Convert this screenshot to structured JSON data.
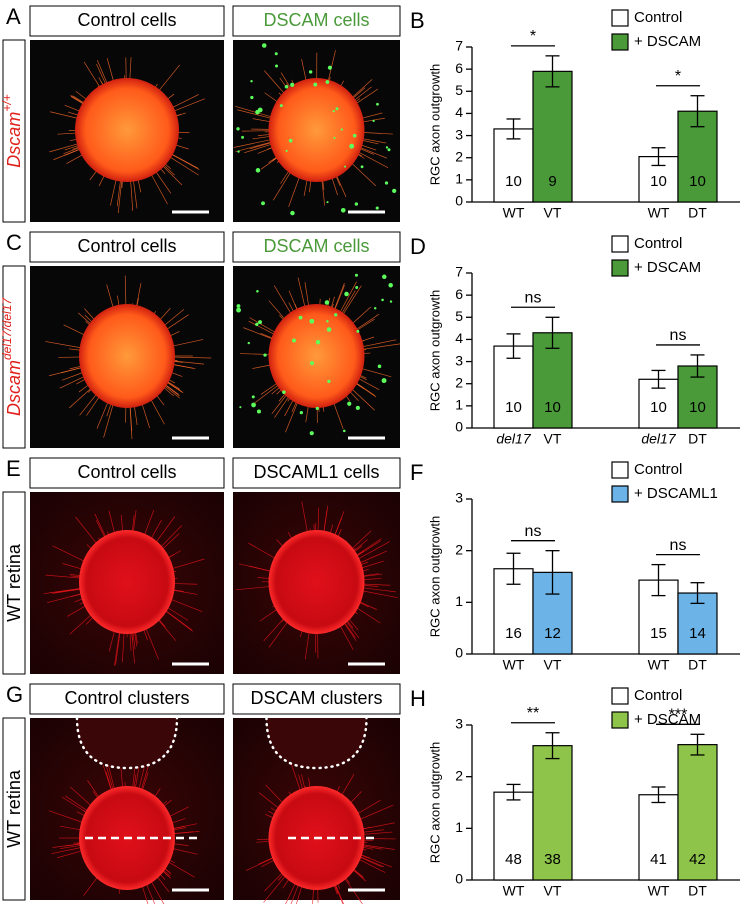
{
  "image_panels": [
    {
      "letter": "A",
      "headers": [
        "Control cells",
        "DSCAM cells"
      ],
      "header_colors": [
        "#000000",
        "#4a9a3a"
      ],
      "side_label": {
        "text": "Dscam",
        "sup": "+/+"
      },
      "side_color": "#e0201b",
      "side_italic": true
    },
    {
      "letter": "C",
      "headers": [
        "Control cells",
        "DSCAM cells"
      ],
      "header_colors": [
        "#000000",
        "#4a9a3a"
      ],
      "side_label": {
        "text": "Dscam",
        "sup": "del17/del17"
      },
      "side_color": "#e0201b",
      "side_italic": true
    },
    {
      "letter": "E",
      "headers": [
        "Control cells",
        "DSCAML1 cells"
      ],
      "header_colors": [
        "#000000",
        "#000000"
      ],
      "side_label": {
        "text": "WT retina"
      },
      "side_color": "#000000",
      "side_italic": false
    },
    {
      "letter": "G",
      "headers": [
        "Control clusters",
        "DSCAM clusters"
      ],
      "header_colors": [
        "#000000",
        "#000000"
      ],
      "side_label": {
        "text": "WT retina"
      },
      "side_color": "#000000",
      "side_italic": false
    }
  ],
  "chart_data": [
    {
      "type": "bar",
      "panel": "B",
      "y_label": "RGC axon outgrowth",
      "ylim": [
        0,
        7
      ],
      "yticks": [
        0,
        1,
        2,
        3,
        4,
        5,
        6,
        7
      ],
      "legend": "top-right",
      "italic_first_label": false,
      "x_labels": [
        [
          "WT",
          "VT"
        ],
        [
          "WT",
          "DT"
        ]
      ],
      "significance": [
        "*",
        "*"
      ],
      "series": [
        {
          "name": "Control",
          "color": "#ffffff",
          "values": [
            3.3,
            2.05
          ],
          "errors": [
            0.45,
            0.4
          ],
          "n": [
            10,
            10
          ]
        },
        {
          "name": "+ DSCAM",
          "color": "#4a9a3a",
          "values": [
            5.9,
            4.1
          ],
          "errors": [
            0.7,
            0.7
          ],
          "n": [
            9,
            10
          ]
        }
      ]
    },
    {
      "type": "bar",
      "panel": "D",
      "y_label": "RGC axon outgrowth",
      "ylim": [
        0,
        7
      ],
      "yticks": [
        0,
        1,
        2,
        3,
        4,
        5,
        6,
        7
      ],
      "legend": "top-right",
      "italic_first_label": true,
      "x_labels": [
        [
          "del17",
          "VT"
        ],
        [
          "del17",
          "DT"
        ]
      ],
      "significance": [
        "ns",
        "ns"
      ],
      "series": [
        {
          "name": "Control",
          "color": "#ffffff",
          "values": [
            3.7,
            2.2
          ],
          "errors": [
            0.55,
            0.4
          ],
          "n": [
            10,
            10
          ]
        },
        {
          "name": "+ DSCAM",
          "color": "#4a9a3a",
          "values": [
            4.3,
            2.8
          ],
          "errors": [
            0.7,
            0.5
          ],
          "n": [
            10,
            10
          ]
        }
      ]
    },
    {
      "type": "bar",
      "panel": "F",
      "y_label": "RGC axon outgrowth",
      "ylim": [
        0,
        3
      ],
      "yticks": [
        0,
        1,
        2,
        3
      ],
      "legend": "top-right",
      "italic_first_label": false,
      "x_labels": [
        [
          "WT",
          "VT"
        ],
        [
          "WT",
          "DT"
        ]
      ],
      "significance": [
        "ns",
        "ns"
      ],
      "series": [
        {
          "name": "Control",
          "color": "#ffffff",
          "values": [
            1.65,
            1.43
          ],
          "errors": [
            0.3,
            0.3
          ],
          "n": [
            16,
            15
          ]
        },
        {
          "name": "+ DSCAML1",
          "color": "#6cb4e8",
          "values": [
            1.58,
            1.18
          ],
          "errors": [
            0.42,
            0.2
          ],
          "n": [
            12,
            14
          ]
        }
      ]
    },
    {
      "type": "bar",
      "panel": "H",
      "y_label": "RGC axon outgrowth",
      "ylim": [
        0,
        3
      ],
      "yticks": [
        0,
        1,
        2,
        3
      ],
      "legend": "top-right",
      "italic_first_label": false,
      "x_labels": [
        [
          "WT",
          "VT"
        ],
        [
          "WT",
          "DT"
        ]
      ],
      "significance": [
        "**",
        "***"
      ],
      "series": [
        {
          "name": "Control",
          "color": "#ffffff",
          "values": [
            1.7,
            1.65
          ],
          "errors": [
            0.15,
            0.15
          ],
          "n": [
            48,
            41
          ]
        },
        {
          "name": "+ DSCAM",
          "color": "#8ec44a",
          "values": [
            2.6,
            2.62
          ],
          "errors": [
            0.25,
            0.2
          ],
          "n": [
            38,
            42
          ]
        }
      ]
    }
  ]
}
